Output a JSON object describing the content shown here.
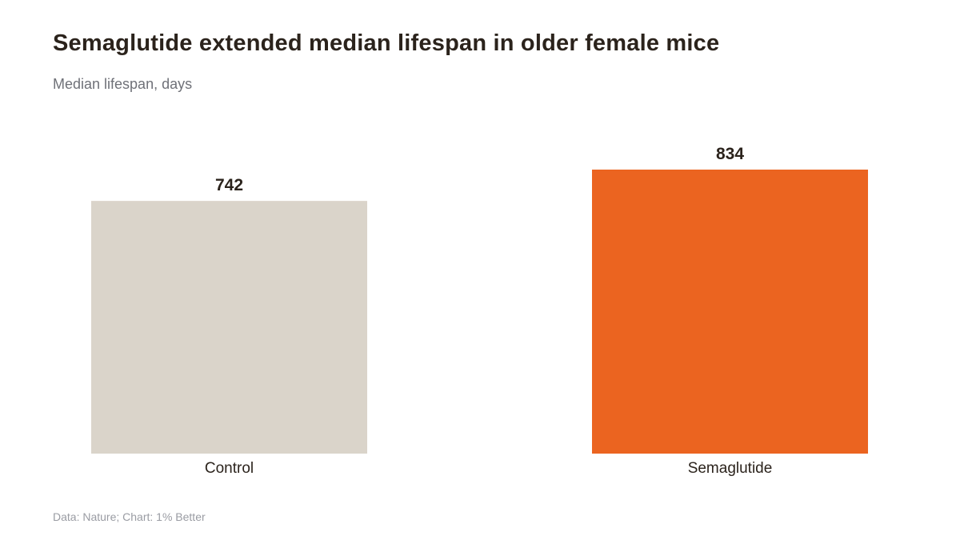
{
  "title": "Semaglutide extended median lifespan in older female mice",
  "subtitle": "Median lifespan, days",
  "source": "Data: Nature; Chart: 1% Better",
  "colors": {
    "control": "#dad4ca",
    "semaglutide": "#eb6420",
    "text": "#2b231c",
    "muted": "#6f7178"
  },
  "chart_data": {
    "type": "bar",
    "categories": [
      "Control",
      "Semaglutide"
    ],
    "values": [
      742,
      834
    ],
    "value_labels": [
      "742",
      "834"
    ],
    "bar_colors": [
      "#dad4ca",
      "#eb6420"
    ],
    "title": "Semaglutide extended median lifespan in older female mice",
    "subtitle": "Median lifespan, days",
    "xlabel": "",
    "ylabel": "",
    "ylim": [
      0,
      834
    ],
    "grid": false,
    "legend": "none"
  }
}
